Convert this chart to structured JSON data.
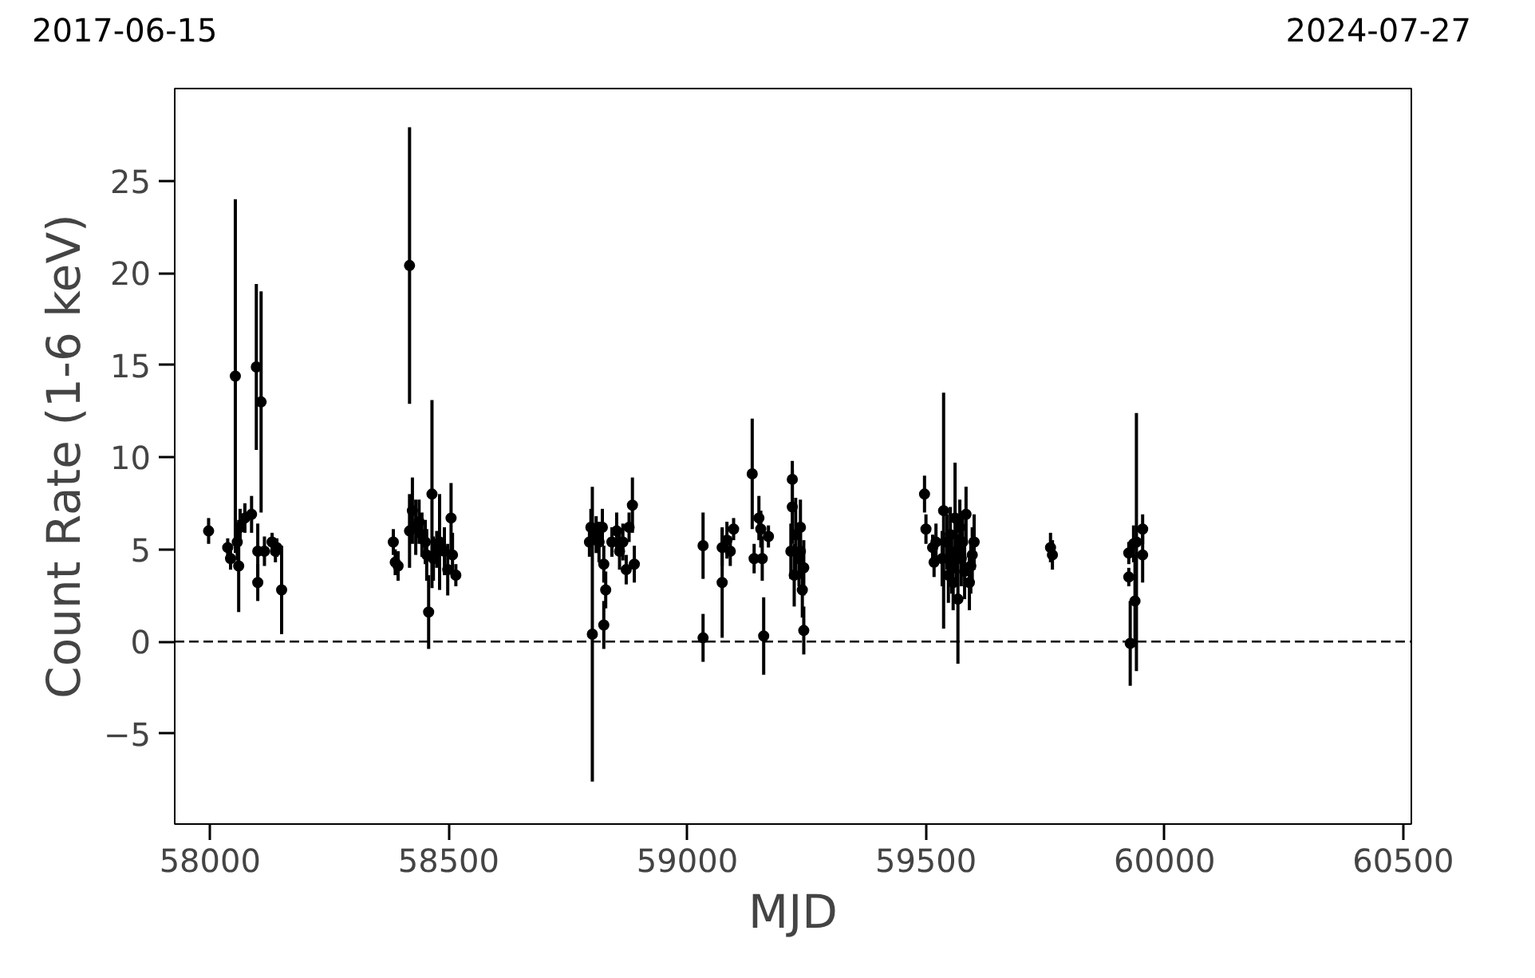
{
  "chart_data": {
    "type": "scatter",
    "xlabel": "MJD",
    "ylabel": "Count Rate (1-6 keV)",
    "annotations": [
      "2017-06-15",
      "2024-07-27"
    ],
    "xlim": [
      57926,
      60517
    ],
    "ylim": [
      -9.9,
      30
    ],
    "xticks": [
      58000,
      58500,
      59000,
      59500,
      60000,
      60500
    ],
    "yticks": [
      {
        "value": -5,
        "label": "−5"
      },
      0,
      5,
      10,
      15,
      20,
      25
    ],
    "marker": "circle",
    "grid": false,
    "ref_lines": [
      {
        "axis": "y",
        "value": 0,
        "color": "#000000",
        "line_style": "dashed"
      }
    ],
    "series": [
      {
        "color": "#000000",
        "x": [
          57997,
          58037,
          58043,
          58053,
          58057,
          58060,
          58063,
          58073,
          58087,
          58097,
          58100,
          58100,
          58107,
          58114,
          58130,
          58137,
          58140,
          58150,
          58384,
          58388,
          58394,
          58418,
          58418,
          58424,
          58431,
          58438,
          58444,
          58451,
          58454,
          58458,
          58465,
          58468,
          58475,
          58481,
          58491,
          58498,
          58505,
          58508,
          58515,
          58795,
          58798,
          58801,
          58809,
          58815,
          58822,
          58825,
          58829,
          58825,
          58842,
          58852,
          58858,
          58865,
          58872,
          58878,
          58885,
          58889,
          59033,
          59033,
          59073,
          59073,
          59083,
          59090,
          59097,
          59136,
          59140,
          59150,
          59154,
          59157,
          59160,
          59170,
          59220,
          59217,
          59220,
          59224,
          59227,
          59234,
          59237,
          59241,
          59244,
          59244,
          59237,
          59497,
          59500,
          59514,
          59517,
          59521,
          59537,
          59534,
          59544,
          59547,
          59551,
          59554,
          59557,
          59561,
          59564,
          59567,
          59571,
          59574,
          59577,
          59581,
          59584,
          59591,
          59594,
          59597,
          59601,
          59761,
          59765,
          59925,
          59925,
          59928,
          59935,
          59938,
          59941,
          59954,
          59954
        ],
        "values": [
          6.0,
          5.1,
          4.5,
          14.4,
          5.4,
          4.1,
          6.2,
          6.7,
          6.9,
          14.9,
          4.9,
          3.2,
          13.0,
          4.9,
          5.4,
          4.9,
          5.1,
          2.8,
          5.4,
          4.3,
          4.1,
          20.4,
          6.0,
          7.1,
          6.2,
          6.5,
          5.8,
          5.4,
          4.7,
          1.6,
          8.0,
          4.5,
          5.0,
          5.4,
          4.9,
          3.9,
          6.7,
          4.7,
          3.6,
          5.4,
          6.2,
          0.4,
          5.8,
          5.4,
          6.2,
          4.2,
          2.8,
          0.9,
          5.4,
          6.0,
          4.9,
          5.4,
          3.9,
          6.2,
          7.4,
          4.2,
          5.2,
          0.2,
          3.2,
          5.1,
          5.5,
          4.9,
          6.1,
          9.1,
          4.5,
          6.7,
          6.1,
          4.5,
          0.3,
          5.7,
          8.8,
          4.9,
          7.3,
          3.6,
          5.8,
          4.5,
          6.2,
          2.8,
          0.6,
          4.0,
          4.9,
          8.0,
          6.1,
          5.1,
          4.3,
          5.4,
          7.1,
          4.5,
          5.4,
          3.6,
          5.8,
          4.1,
          3.2,
          6.7,
          4.9,
          2.3,
          6.2,
          4.5,
          5.4,
          3.8,
          6.9,
          3.2,
          4.1,
          4.7,
          5.4,
          5.1,
          4.7,
          4.8,
          3.5,
          -0.1,
          5.3,
          2.2,
          5.4,
          6.1,
          4.7
        ],
        "errors": [
          0.7,
          0.5,
          0.6,
          9.6,
          1.0,
          2.5,
          1.0,
          0.8,
          1.0,
          4.5,
          1.5,
          1.0,
          6.0,
          0.8,
          0.5,
          0.6,
          0.5,
          2.4,
          0.7,
          0.7,
          0.8,
          7.5,
          2.0,
          1.8,
          1.5,
          1.2,
          1.2,
          1.2,
          1.4,
          2.0,
          5.1,
          1.2,
          1.0,
          2.6,
          1.3,
          1.4,
          1.9,
          1.2,
          0.6,
          0.8,
          1.0,
          8.0,
          1.0,
          1.1,
          1.0,
          1.0,
          1.0,
          1.3,
          0.8,
          1.0,
          1.0,
          1.0,
          0.8,
          0.8,
          1.5,
          1.0,
          1.8,
          1.3,
          3.0,
          1.0,
          1.0,
          0.8,
          0.6,
          3.0,
          0.8,
          1.2,
          1.0,
          1.2,
          2.1,
          0.6,
          1.0,
          1.5,
          2.0,
          1.7,
          2.0,
          1.5,
          1.5,
          1.5,
          1.3,
          1.5,
          1.5,
          1.0,
          0.8,
          0.7,
          0.8,
          1.0,
          6.4,
          1.5,
          1.5,
          1.5,
          1.5,
          1.5,
          1.5,
          3.0,
          1.5,
          3.5,
          1.5,
          1.5,
          1.5,
          1.5,
          1.5,
          1.5,
          1.5,
          1.5,
          1.5,
          0.8,
          0.8,
          0.6,
          0.5,
          2.3,
          1.0,
          2.5,
          7.0,
          0.8,
          1.5
        ]
      }
    ]
  }
}
